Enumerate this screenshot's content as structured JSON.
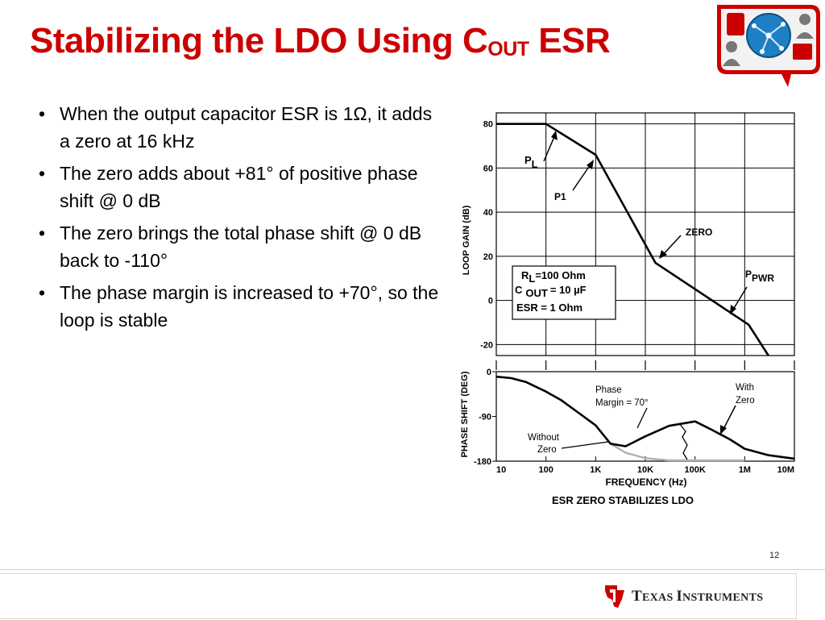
{
  "slide": {
    "title_main": "Stabilizing the LDO Using C",
    "title_sub": "OUT",
    "title_end": " ESR",
    "bullets": [
      "When the output capacitor ESR is 1Ω, it adds a zero at 16 kHz",
      "The zero adds about +81° of positive phase shift @ 0 dB",
      "The zero brings the total phase shift @ 0 dB back to -110°",
      "The phase margin is increased to +70°, so the loop is stable"
    ],
    "bullet_char": "•",
    "page_number": "12",
    "footer_brand_1": "T",
    "footer_brand_2": "EXAS ",
    "footer_brand_3": "I",
    "footer_brand_4": "NSTRUMENTS"
  },
  "colors": {
    "title": "#cc0000",
    "brand_red": "#cc0000",
    "curve": "#000000",
    "without_zero_curve": "#b0b0b0"
  },
  "chart_data": {
    "type": "line",
    "caption": "ESR ZERO STABILIZES LDO",
    "xlabel": "FREQUENCY (Hz)",
    "x_scale": "log",
    "x_ticks": [
      "10",
      "100",
      "1K",
      "10K",
      "100K",
      "1M",
      "10M"
    ],
    "panels": [
      {
        "name": "gain",
        "ylabel": "LOOP GAIN (dB)",
        "ylim": [
          -25,
          85
        ],
        "y_ticks": [
          "80",
          "60",
          "40",
          "20",
          "0",
          "-20"
        ],
        "grid": true,
        "series": [
          {
            "x": [
              10,
              100,
              1000,
              16000,
              1200000,
              3000000
            ],
            "y": [
              80,
              80,
              66,
              17,
              -11,
              -27
            ]
          }
        ],
        "annotations": {
          "pl_main": "P",
          "pl_sub": "L",
          "p1": "P1",
          "zero": "ZERO",
          "ppwr_main": "P",
          "ppwr_sub": "PWR"
        },
        "legend_box": {
          "rl_main": "R",
          "rl_sub": "L",
          "rl_val": "=100 Ohm",
          "cout_main": "C",
          "cout_sub": "OUT",
          "cout_val": "= 10 µF",
          "esr": "ESR = 1 Ohm"
        }
      },
      {
        "name": "phase",
        "ylabel": "PHASE SHIFT (DEG)",
        "ylim": [
          -180,
          0
        ],
        "y_ticks": [
          "0",
          "-90",
          "-180"
        ],
        "series": [
          {
            "name": "With Zero",
            "x": [
              10,
              20,
              40,
              100,
              200,
              500,
              1000,
              2000,
              4000,
              10000,
              30000,
              100000,
              200000,
              500000,
              1000000,
              3000000,
              10000000
            ],
            "y": [
              -10,
              -13,
              -21,
              -40,
              -57,
              -86,
              -108,
              -145,
              -150,
              -130,
              -109,
              -100,
              -115,
              -136,
              -155,
              -168,
              -175
            ]
          },
          {
            "name": "Without Zero",
            "x": [
              2000,
              4000,
              10000,
              30000,
              100000,
              300000,
              1000000
            ],
            "y": [
              -145,
              -163,
              -174,
              -179,
              -180,
              -180,
              -180
            ]
          }
        ],
        "annotations": {
          "phase_margin_1": "Phase",
          "phase_margin_2": "Margin = 70°",
          "with_zero_1": "With",
          "with_zero_2": "Zero",
          "without_zero_1": "Without",
          "without_zero_2": "Zero"
        }
      }
    ]
  }
}
